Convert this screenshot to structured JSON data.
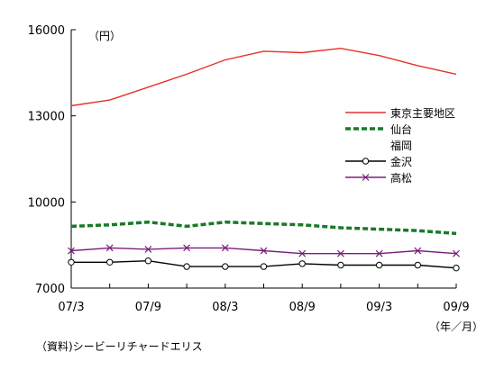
{
  "chart_data": {
    "type": "line",
    "y_unit": "（円）",
    "x_unit": "（年／月）",
    "source": "（資料)シービーリチャードエリス",
    "ylim": [
      7000,
      16000
    ],
    "yticks": [
      "16000",
      "13000",
      "10000",
      "7000"
    ],
    "ytick_values": [
      16000,
      13000,
      10000,
      7000
    ],
    "x_tick_labels": [
      "07/3",
      "07/9",
      "08/3",
      "08/9",
      "09/3",
      "09/9"
    ],
    "x_tick_positions": [
      0,
      2,
      4,
      6,
      8,
      10
    ],
    "x_count": 11,
    "grid": false,
    "legend_position": "right",
    "series": [
      {
        "name": "東京主要地区",
        "color": "#e8302a",
        "style": "solid",
        "marker": "none",
        "values": [
          13350,
          13550,
          14000,
          14450,
          14950,
          15250,
          15200,
          15350,
          15100,
          14750,
          14450
        ]
      },
      {
        "name": "仙台",
        "color": "#1a7a2a",
        "style": "dashed",
        "marker": "none",
        "values": [
          9150,
          9200,
          9300,
          9150,
          9300,
          9250,
          9200,
          9100,
          9050,
          9000,
          8900
        ]
      },
      {
        "name": "福岡",
        "color": "#ffffff",
        "style": "none",
        "marker": "none",
        "values": []
      },
      {
        "name": "金沢",
        "color": "#000000",
        "style": "solid",
        "marker": "circle",
        "values": [
          7900,
          7900,
          7950,
          7750,
          7750,
          7750,
          7850,
          7800,
          7800,
          7800,
          7700
        ]
      },
      {
        "name": "高松",
        "color": "#7b1e7b",
        "style": "solid",
        "marker": "x",
        "values": [
          8300,
          8400,
          8350,
          8400,
          8400,
          8300,
          8200,
          8200,
          8200,
          8300,
          8200
        ]
      }
    ]
  }
}
